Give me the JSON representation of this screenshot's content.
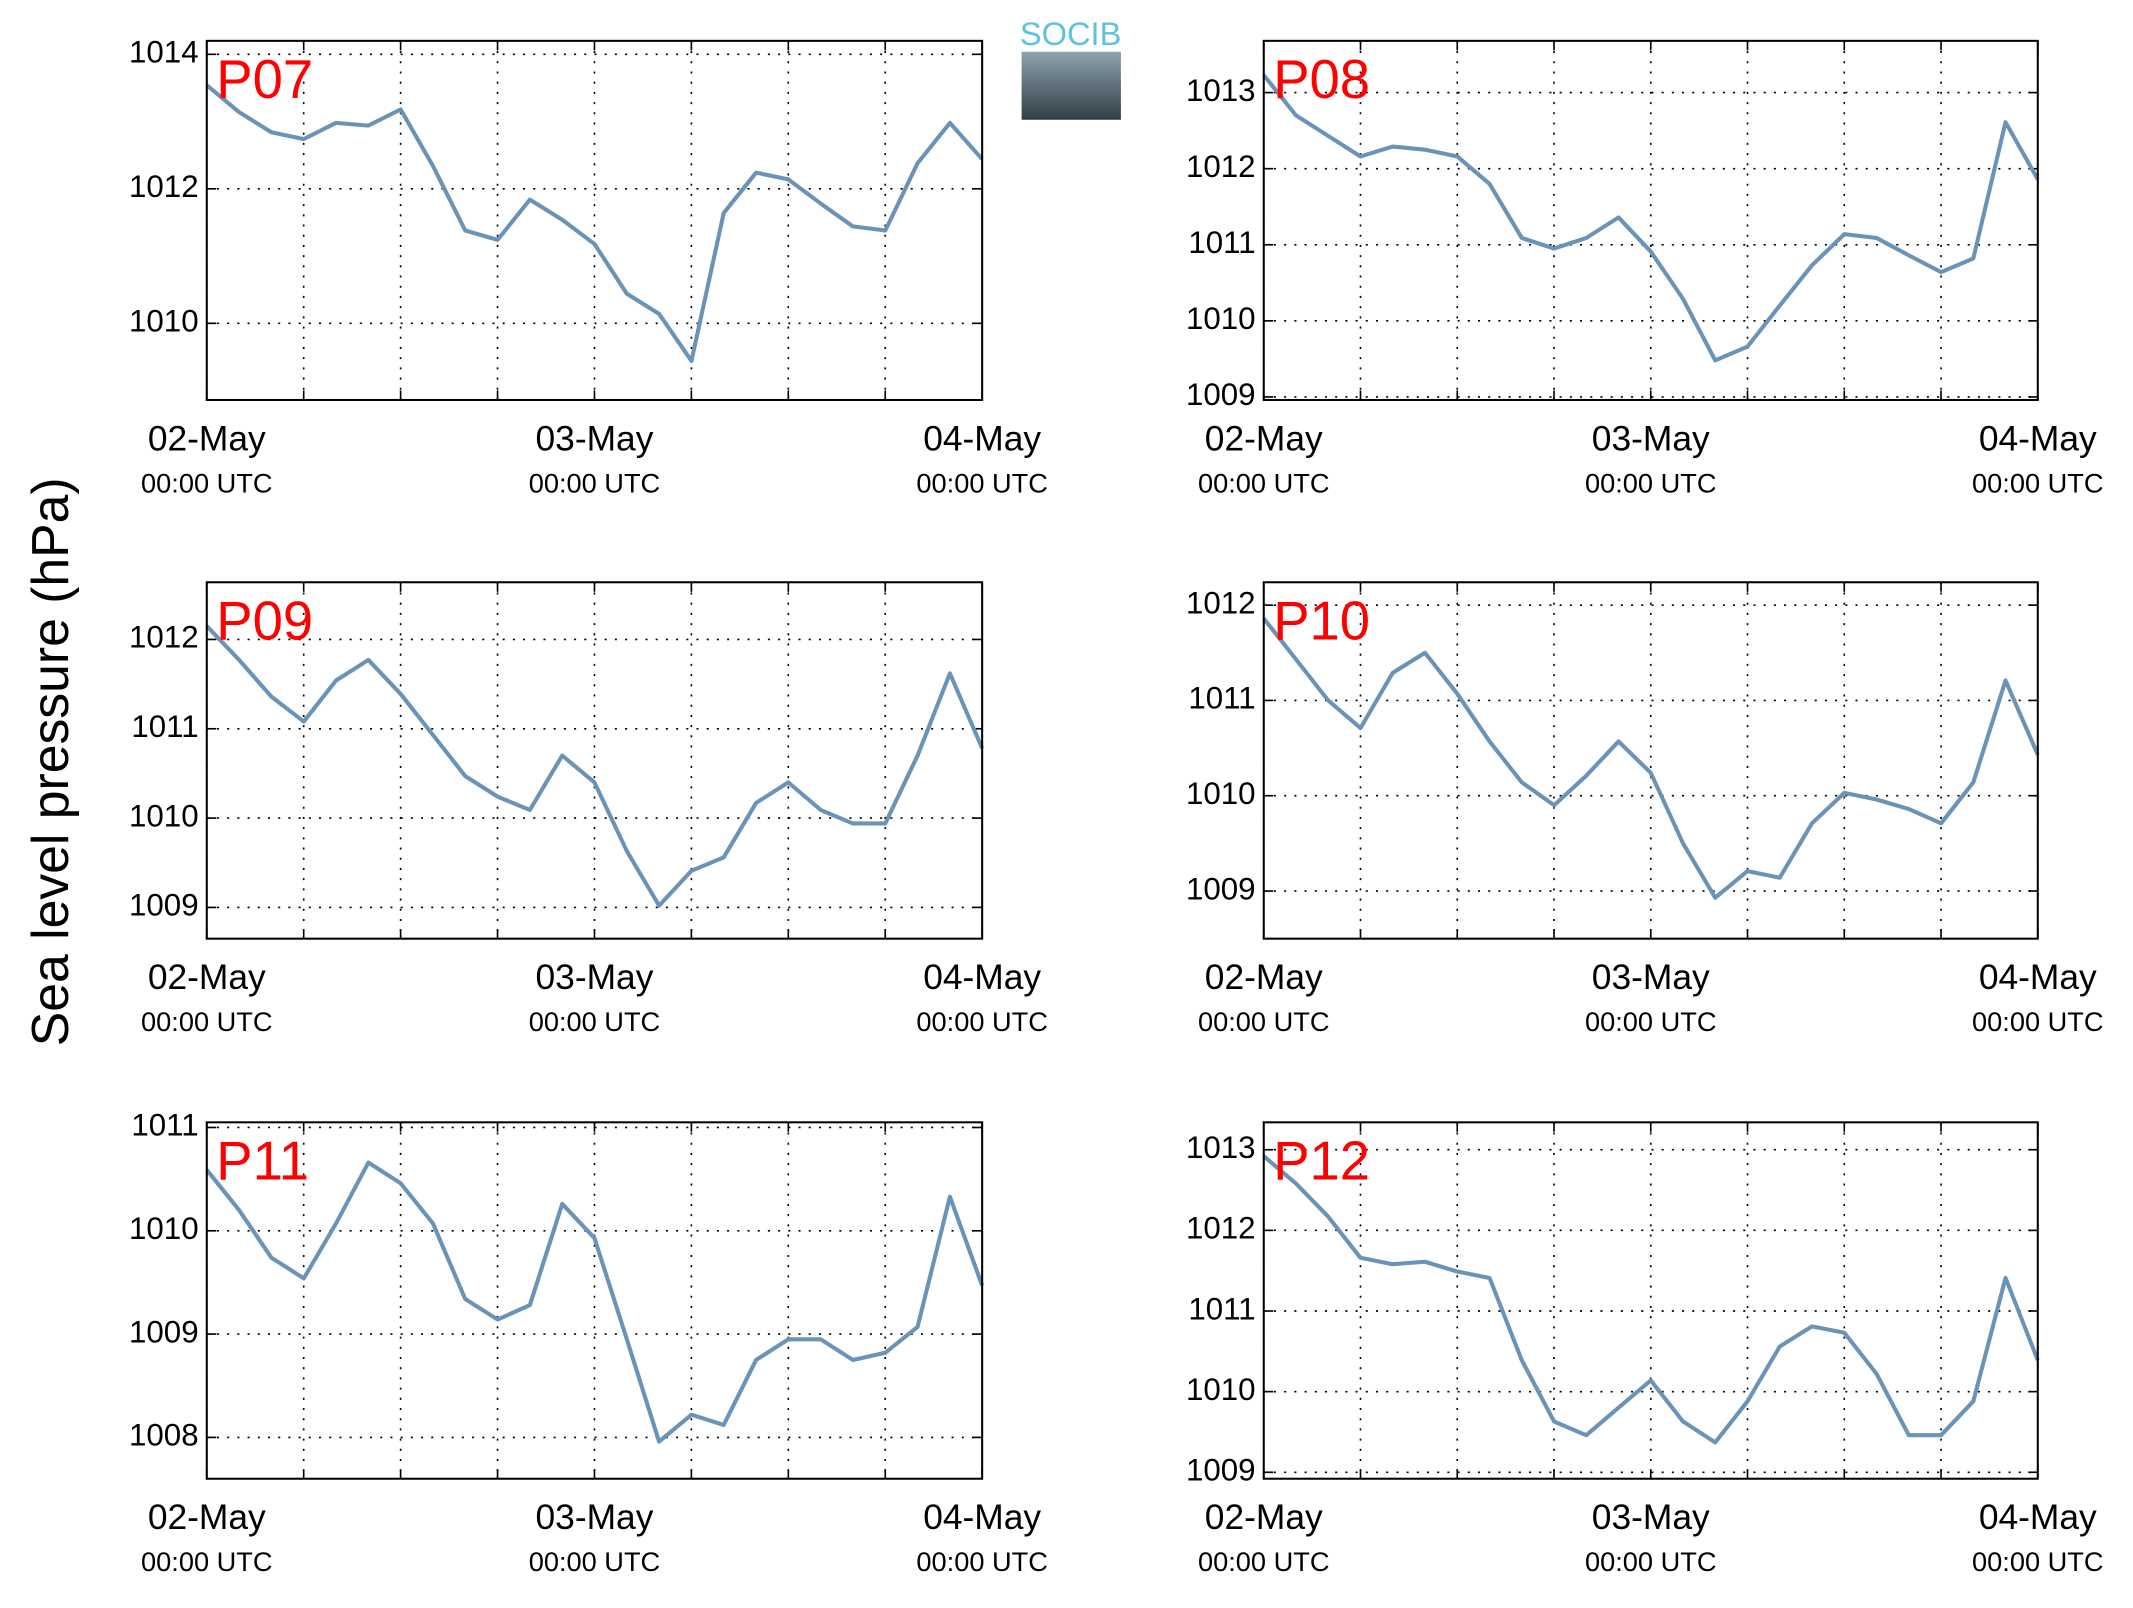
{
  "ylabel": "Sea level pressure (hPa)",
  "logo": "SOCIB",
  "chart_data": [
    {
      "type": "line",
      "title": "P07",
      "color": "#6a93b8",
      "xlim": [
        0,
        48
      ],
      "xticks": [
        0,
        6,
        12,
        18,
        24,
        30,
        36,
        42,
        48
      ],
      "xtick_labels": [
        {
          "value": 0,
          "label": "02-May",
          "sublabel": "00:00 UTC"
        },
        {
          "value": 24,
          "label": "03-May",
          "sublabel": "00:00 UTC"
        },
        {
          "value": 48,
          "label": "04-May",
          "sublabel": "00:00 UTC"
        }
      ],
      "ylim": [
        1008.86,
        1014.2
      ],
      "yticks": [
        1010,
        1012,
        1014
      ],
      "x": [
        0,
        2,
        4,
        6,
        8,
        10,
        12,
        14,
        16,
        18,
        20,
        22,
        24,
        26,
        28,
        30,
        32,
        34,
        36,
        38,
        40,
        42,
        44,
        46,
        48
      ],
      "values": [
        1013.54,
        1013.14,
        1012.84,
        1012.74,
        1012.98,
        1012.94,
        1013.18,
        1012.34,
        1011.38,
        1011.24,
        1011.84,
        1011.54,
        1011.18,
        1010.44,
        1010.14,
        1009.44,
        1011.64,
        1012.24,
        1012.14,
        1011.78,
        1011.44,
        1011.38,
        1012.38,
        1012.98,
        1012.44
      ]
    },
    {
      "type": "line",
      "title": "P08",
      "color": "#6a93b8",
      "xlim": [
        0,
        48
      ],
      "xticks": [
        0,
        6,
        12,
        18,
        24,
        30,
        36,
        42,
        48
      ],
      "xtick_labels": [
        {
          "value": 0,
          "label": "02-May",
          "sublabel": "00:00 UTC"
        },
        {
          "value": 24,
          "label": "03-May",
          "sublabel": "00:00 UTC"
        },
        {
          "value": 48,
          "label": "04-May",
          "sublabel": "00:00 UTC"
        }
      ],
      "ylim": [
        1008.96,
        1013.68
      ],
      "yticks": [
        1009,
        1010,
        1011,
        1012,
        1013
      ],
      "x": [
        0,
        2,
        4,
        6,
        8,
        10,
        12,
        14,
        16,
        18,
        20,
        22,
        24,
        26,
        28,
        30,
        32,
        34,
        36,
        38,
        40,
        42,
        44,
        46,
        48
      ],
      "values": [
        1013.23,
        1012.7,
        1012.43,
        1012.16,
        1012.29,
        1012.25,
        1012.16,
        1011.8,
        1011.09,
        1010.95,
        1011.09,
        1011.36,
        1010.91,
        1010.29,
        1009.48,
        1009.66,
        1010.2,
        1010.73,
        1011.14,
        1011.09,
        1010.86,
        1010.64,
        1010.82,
        1012.61,
        1011.86
      ]
    },
    {
      "type": "line",
      "title": "P09",
      "color": "#6a93b8",
      "xlim": [
        0,
        48
      ],
      "xticks": [
        0,
        6,
        12,
        18,
        24,
        30,
        36,
        42,
        48
      ],
      "xtick_labels": [
        {
          "value": 0,
          "label": "02-May",
          "sublabel": "00:00 UTC"
        },
        {
          "value": 24,
          "label": "03-May",
          "sublabel": "00:00 UTC"
        },
        {
          "value": 48,
          "label": "04-May",
          "sublabel": "00:00 UTC"
        }
      ],
      "ylim": [
        1008.65,
        1012.64
      ],
      "yticks": [
        1009,
        1010,
        1011,
        1012
      ],
      "x": [
        0,
        2,
        4,
        6,
        8,
        10,
        12,
        14,
        16,
        18,
        20,
        22,
        24,
        26,
        28,
        30,
        32,
        34,
        36,
        38,
        40,
        42,
        44,
        46,
        48
      ],
      "values": [
        1012.15,
        1011.77,
        1011.36,
        1011.08,
        1011.54,
        1011.77,
        1011.39,
        1010.93,
        1010.47,
        1010.24,
        1010.09,
        1010.7,
        1010.4,
        1009.63,
        1009.02,
        1009.41,
        1009.56,
        1010.17,
        1010.4,
        1010.09,
        1009.94,
        1009.94,
        1010.7,
        1011.62,
        1010.78
      ]
    },
    {
      "type": "line",
      "title": "P10",
      "color": "#6a93b8",
      "xlim": [
        0,
        48
      ],
      "xticks": [
        0,
        6,
        12,
        18,
        24,
        30,
        36,
        42,
        48
      ],
      "xtick_labels": [
        {
          "value": 0,
          "label": "02-May",
          "sublabel": "00:00 UTC"
        },
        {
          "value": 24,
          "label": "03-May",
          "sublabel": "00:00 UTC"
        },
        {
          "value": 48,
          "label": "04-May",
          "sublabel": "00:00 UTC"
        }
      ],
      "ylim": [
        1008.5,
        1012.24
      ],
      "yticks": [
        1009,
        1010,
        1011,
        1012
      ],
      "x": [
        0,
        2,
        4,
        6,
        8,
        10,
        12,
        14,
        16,
        18,
        20,
        22,
        24,
        26,
        28,
        30,
        32,
        34,
        36,
        38,
        40,
        42,
        44,
        46,
        48
      ],
      "values": [
        1011.86,
        1011.43,
        1011,
        1010.71,
        1011.29,
        1011.5,
        1011.07,
        1010.57,
        1010.14,
        1009.9,
        1010.21,
        1010.57,
        1010.24,
        1009.5,
        1008.93,
        1009.21,
        1009.14,
        1009.71,
        1010.03,
        1009.96,
        1009.86,
        1009.71,
        1010.14,
        1011.21,
        1010.43
      ]
    },
    {
      "type": "line",
      "title": "P11",
      "color": "#6a93b8",
      "xlim": [
        0,
        48
      ],
      "xticks": [
        0,
        6,
        12,
        18,
        24,
        30,
        36,
        42,
        48
      ],
      "xtick_labels": [
        {
          "value": 0,
          "label": "02-May",
          "sublabel": "00:00 UTC"
        },
        {
          "value": 24,
          "label": "03-May",
          "sublabel": "00:00 UTC"
        },
        {
          "value": 48,
          "label": "04-May",
          "sublabel": "00:00 UTC"
        }
      ],
      "ylim": [
        1007.6,
        1011.05
      ],
      "yticks": [
        1008,
        1009,
        1010,
        1011
      ],
      "x": [
        0,
        2,
        4,
        6,
        8,
        10,
        12,
        14,
        16,
        18,
        20,
        22,
        24,
        26,
        28,
        30,
        32,
        34,
        36,
        38,
        40,
        42,
        44,
        46,
        48
      ],
      "values": [
        1010.59,
        1010.2,
        1009.74,
        1009.54,
        1010.07,
        1010.66,
        1010.46,
        1010.07,
        1009.34,
        1009.14,
        1009.28,
        1010.26,
        1009.93,
        1008.95,
        1007.96,
        1008.22,
        1008.12,
        1008.75,
        1008.95,
        1008.95,
        1008.75,
        1008.82,
        1009.07,
        1010.33,
        1009.47
      ]
    },
    {
      "type": "line",
      "title": "P12",
      "color": "#6a93b8",
      "xlim": [
        0,
        48
      ],
      "xticks": [
        0,
        6,
        12,
        18,
        24,
        30,
        36,
        42,
        48
      ],
      "xtick_labels": [
        {
          "value": 0,
          "label": "02-May",
          "sublabel": "00:00 UTC"
        },
        {
          "value": 24,
          "label": "03-May",
          "sublabel": "00:00 UTC"
        },
        {
          "value": 48,
          "label": "04-May",
          "sublabel": "00:00 UTC"
        }
      ],
      "ylim": [
        1008.92,
        1013.34
      ],
      "yticks": [
        1009,
        1010,
        1011,
        1012,
        1013
      ],
      "x": [
        0,
        2,
        4,
        6,
        8,
        10,
        12,
        14,
        16,
        18,
        20,
        22,
        24,
        26,
        28,
        30,
        32,
        34,
        36,
        38,
        40,
        42,
        44,
        46,
        48
      ],
      "values": [
        1012.92,
        1012.58,
        1012.17,
        1011.66,
        1011.58,
        1011.61,
        1011.49,
        1011.41,
        1010.39,
        1009.63,
        1009.46,
        1009.8,
        1010.14,
        1009.63,
        1009.37,
        1009.88,
        1010.56,
        1010.81,
        1010.73,
        1010.22,
        1009.46,
        1009.46,
        1009.88,
        1011.41,
        1010.39
      ]
    }
  ]
}
